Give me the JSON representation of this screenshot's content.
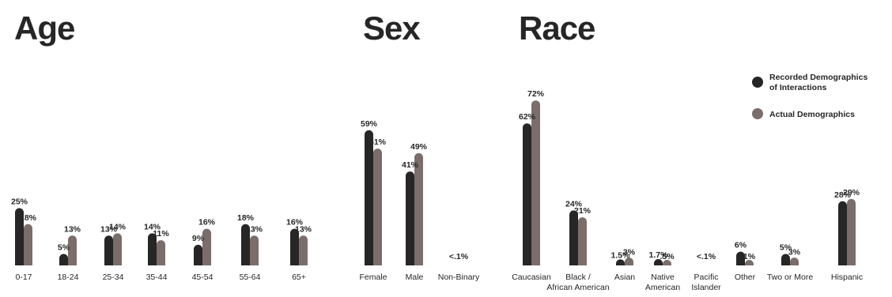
{
  "colors": {
    "recorded": "#262626",
    "actual": "#7a6d6a",
    "text": "#262626"
  },
  "legend": {
    "recorded_line1": "Recorded Demographics",
    "recorded_line2": "of Interactions",
    "actual": "Actual Demographics"
  },
  "chart_data": [
    {
      "type": "bar",
      "title": "Age",
      "categories": [
        "0-17",
        "18-24",
        "25-34",
        "35-44",
        "45-54",
        "55-64",
        "65+"
      ],
      "series": [
        {
          "name": "Recorded Demographics of Interactions",
          "values": [
            25,
            5,
            13,
            14,
            9,
            18,
            16
          ],
          "labels": [
            "25%",
            "5%",
            "13%",
            "14%",
            "9%",
            "18%",
            "16%"
          ]
        },
        {
          "name": "Actual Demographics",
          "values": [
            18,
            13,
            14,
            11,
            16,
            13,
            13
          ],
          "labels": [
            "18%",
            "13%",
            "14%",
            "11%",
            "16%",
            "13%",
            "13%"
          ]
        }
      ],
      "ylim": [
        0,
        72
      ]
    },
    {
      "type": "bar",
      "title": "Sex",
      "categories": [
        "Female",
        "Male",
        "Non-Binary"
      ],
      "series": [
        {
          "name": "Recorded Demographics of Interactions",
          "values": [
            59,
            41,
            0.1
          ],
          "labels": [
            "59%",
            "41%",
            "<.1%"
          ]
        },
        {
          "name": "Actual Demographics",
          "values": [
            51,
            49,
            null
          ],
          "labels": [
            "51%",
            "49%",
            null
          ]
        }
      ],
      "ylim": [
        0,
        72
      ]
    },
    {
      "type": "bar",
      "title": "Race",
      "categories": [
        "Caucasian",
        "Black / African American",
        "Asian",
        "Native American",
        "Pacific Islander",
        "Other",
        "Two or More",
        "Hispanic"
      ],
      "category_lines": [
        [
          "Caucasian"
        ],
        [
          "Black /",
          "African American"
        ],
        [
          "Asian"
        ],
        [
          "Native",
          "American"
        ],
        [
          "Pacific",
          "Islander"
        ],
        [
          "Other"
        ],
        [
          "Two or More"
        ],
        [
          "Hispanic"
        ]
      ],
      "series": [
        {
          "name": "Recorded Demographics of Interactions",
          "values": [
            62,
            24,
            1.5,
            1.7,
            0.1,
            6,
            5,
            28
          ],
          "labels": [
            "62%",
            "24%",
            "1.5%",
            "1.7%",
            "<.1%",
            "6%",
            "5%",
            "28%"
          ]
        },
        {
          "name": "Actual Demographics",
          "values": [
            72,
            21,
            3,
            0.5,
            null,
            1,
            3,
            29
          ],
          "labels": [
            "72%",
            "21%",
            "3%",
            ".5%",
            null,
            "1%",
            "3%",
            "29%"
          ]
        }
      ],
      "ylim": [
        0,
        72
      ]
    }
  ]
}
